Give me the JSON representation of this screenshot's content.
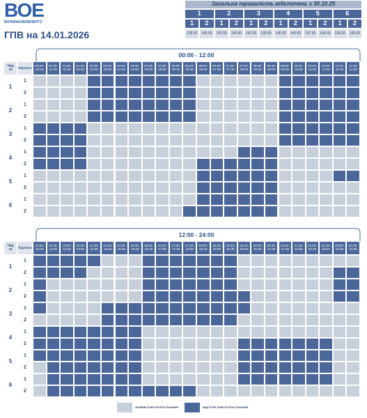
{
  "logo": {
    "mark": "ВОЕ",
    "name": "ВОЛИНЬОБЛЕНЕРГО"
  },
  "title": "ГПВ на 14.01.2026",
  "summary": {
    "title": "Загальна тривалість відключень з 30.10.25",
    "queues": [
      {
        "label": "1",
        "subqueues": [
          {
            "label": "1",
            "value": "139.50"
          },
          {
            "label": "2",
            "value": "140.00"
          }
        ]
      },
      {
        "label": "2",
        "subqueues": [
          {
            "label": "1",
            "value": "142.50"
          },
          {
            "label": "2",
            "value": "140.00"
          }
        ]
      },
      {
        "label": "3",
        "subqueues": [
          {
            "label": "1",
            "value": "142.50"
          },
          {
            "label": "2",
            "value": "139.50"
          }
        ]
      },
      {
        "label": "4",
        "subqueues": [
          {
            "label": "1",
            "value": "140.50"
          },
          {
            "label": "2",
            "value": "140.00"
          }
        ]
      },
      {
        "label": "5",
        "subqueues": [
          {
            "label": "1",
            "value": "137.50"
          },
          {
            "label": "2",
            "value": "140.00"
          }
        ]
      },
      {
        "label": "6",
        "subqueues": [
          {
            "label": "1",
            "value": "139.00"
          },
          {
            "label": "2",
            "value": "135.00"
          }
        ]
      }
    ]
  },
  "legend": [
    {
      "label": "- НАЯВНЕ ЕЛЕКТРОПОСТАЧАННЯ",
      "color": "#c7cfdb"
    },
    {
      "label": "- ВІДСУТНЄ ЕЛЕКТРОПОСТАЧАННЯ",
      "color": "#4b679a"
    }
  ],
  "periods": [
    {
      "title": "00:00 - 12:00",
      "queue_header": "Черга",
      "subqueue_header": "Підчерга",
      "slots": [
        "00:00-00:30",
        "00:30-01:00",
        "01:00-01:30",
        "01:30-02:00",
        "02:00-02:30",
        "02:30-03:00",
        "03:00-03:30",
        "03:30-04:00",
        "04:00-04:30",
        "04:30-05:00",
        "05:00-05:30",
        "05:30-06:00",
        "06:00-06:30",
        "06:30-07:00",
        "07:00-07:30",
        "07:30-08:00",
        "08:00-08:30",
        "08:30-09:00",
        "09:00-09:30",
        "09:30-10:00",
        "10:00-10:30",
        "10:30-11:00",
        "11:00-11:30",
        "11:30-12:00"
      ],
      "queues": [
        {
          "label": "1",
          "subqueues": [
            {
              "label": "1",
              "cells": [
                0,
                0,
                0,
                0,
                1,
                1,
                1,
                1,
                1,
                1,
                1,
                1,
                0,
                0,
                0,
                0,
                0,
                0,
                1,
                1,
                1,
                1,
                1,
                1
              ]
            },
            {
              "label": "2",
              "cells": [
                0,
                0,
                0,
                0,
                1,
                1,
                1,
                1,
                1,
                1,
                1,
                1,
                0,
                0,
                0,
                0,
                0,
                0,
                1,
                1,
                1,
                1,
                1,
                1
              ]
            }
          ]
        },
        {
          "label": "2",
          "subqueues": [
            {
              "label": "1",
              "cells": [
                0,
                0,
                0,
                0,
                1,
                1,
                1,
                1,
                1,
                1,
                1,
                1,
                0,
                0,
                0,
                0,
                0,
                0,
                1,
                1,
                1,
                1,
                1,
                1
              ]
            },
            {
              "label": "2",
              "cells": [
                0,
                0,
                0,
                0,
                1,
                1,
                1,
                1,
                1,
                1,
                1,
                1,
                0,
                0,
                0,
                0,
                0,
                0,
                1,
                1,
                1,
                1,
                1,
                1
              ]
            }
          ]
        },
        {
          "label": "3",
          "subqueues": [
            {
              "label": "1",
              "cells": [
                1,
                1,
                1,
                1,
                0,
                0,
                0,
                0,
                0,
                0,
                0,
                0,
                0,
                0,
                0,
                0,
                0,
                0,
                1,
                1,
                1,
                1,
                1,
                1
              ]
            },
            {
              "label": "2",
              "cells": [
                1,
                1,
                1,
                1,
                0,
                0,
                0,
                0,
                0,
                0,
                0,
                0,
                0,
                0,
                0,
                0,
                0,
                0,
                1,
                1,
                1,
                1,
                1,
                1
              ]
            }
          ]
        },
        {
          "label": "4",
          "subqueues": [
            {
              "label": "1",
              "cells": [
                1,
                1,
                1,
                1,
                0,
                0,
                0,
                0,
                0,
                0,
                0,
                0,
                0,
                0,
                0,
                1,
                1,
                1,
                0,
                0,
                0,
                0,
                0,
                0
              ]
            },
            {
              "label": "2",
              "cells": [
                1,
                1,
                1,
                1,
                0,
                0,
                0,
                0,
                0,
                0,
                0,
                0,
                1,
                1,
                1,
                1,
                1,
                1,
                0,
                0,
                0,
                0,
                0,
                0
              ]
            }
          ]
        },
        {
          "label": "5",
          "subqueues": [
            {
              "label": "1",
              "cells": [
                0,
                0,
                0,
                0,
                0,
                0,
                0,
                0,
                0,
                0,
                0,
                0,
                1,
                1,
                1,
                1,
                1,
                1,
                0,
                0,
                0,
                0,
                1,
                1
              ]
            },
            {
              "label": "2",
              "cells": [
                0,
                0,
                0,
                0,
                0,
                0,
                0,
                0,
                0,
                0,
                0,
                0,
                1,
                1,
                1,
                1,
                1,
                1,
                0,
                0,
                0,
                0,
                0,
                0
              ]
            }
          ]
        },
        {
          "label": "6",
          "subqueues": [
            {
              "label": "1",
              "cells": [
                0,
                0,
                0,
                0,
                0,
                0,
                0,
                0,
                0,
                0,
                0,
                0,
                1,
                1,
                1,
                1,
                1,
                1,
                0,
                0,
                0,
                0,
                0,
                0
              ]
            },
            {
              "label": "2",
              "cells": [
                0,
                0,
                0,
                0,
                0,
                0,
                0,
                0,
                0,
                0,
                0,
                1,
                1,
                1,
                1,
                1,
                1,
                1,
                0,
                0,
                0,
                0,
                0,
                0
              ]
            }
          ]
        }
      ]
    },
    {
      "title": "12:00 - 24:00",
      "queue_header": "Черга",
      "subqueue_header": "Підчерга",
      "slots": [
        "12:00-12:30",
        "12:30-13:00",
        "13:00-13:30",
        "13:30-14:00",
        "14:00-14:30",
        "14:30-15:00",
        "15:00-15:30",
        "15:30-16:00",
        "16:00-16:30",
        "16:30-17:00",
        "17:00-17:30",
        "17:30-18:00",
        "18:00-18:30",
        "18:30-19:00",
        "19:00-19:30",
        "19:30-20:00",
        "20:00-20:30",
        "20:30-21:00",
        "21:00-21:30",
        "21:30-22:00",
        "22:00-22:30",
        "22:30-23:00",
        "23:00-23:30",
        "23:30-24:00"
      ],
      "queues": [
        {
          "label": "1",
          "subqueues": [
            {
              "label": "1",
              "cells": [
                1,
                1,
                1,
                1,
                1,
                0,
                0,
                0,
                1,
                1,
                1,
                1,
                1,
                1,
                1,
                0,
                0,
                0,
                0,
                0,
                0,
                0,
                0,
                0
              ]
            },
            {
              "label": "2",
              "cells": [
                1,
                1,
                1,
                1,
                0,
                0,
                0,
                0,
                1,
                1,
                1,
                1,
                1,
                1,
                1,
                0,
                0,
                0,
                0,
                0,
                0,
                0,
                1,
                1
              ]
            }
          ]
        },
        {
          "label": "2",
          "subqueues": [
            {
              "label": "1",
              "cells": [
                1,
                0,
                0,
                0,
                0,
                0,
                0,
                0,
                1,
                1,
                1,
                1,
                1,
                1,
                1,
                0,
                0,
                0,
                0,
                0,
                0,
                0,
                1,
                1
              ]
            },
            {
              "label": "2",
              "cells": [
                1,
                0,
                0,
                0,
                0,
                0,
                0,
                0,
                1,
                1,
                1,
                1,
                1,
                1,
                1,
                1,
                0,
                0,
                0,
                0,
                0,
                0,
                1,
                1
              ]
            }
          ]
        },
        {
          "label": "3",
          "subqueues": [
            {
              "label": "1",
              "cells": [
                1,
                0,
                0,
                0,
                0,
                1,
                1,
                1,
                1,
                1,
                1,
                1,
                1,
                1,
                1,
                1,
                0,
                0,
                0,
                0,
                0,
                0,
                0,
                0
              ]
            },
            {
              "label": "2",
              "cells": [
                0,
                0,
                0,
                0,
                0,
                1,
                1,
                1,
                1,
                1,
                1,
                1,
                1,
                1,
                1,
                0,
                0,
                0,
                0,
                0,
                0,
                0,
                0,
                0
              ]
            }
          ]
        },
        {
          "label": "4",
          "subqueues": [
            {
              "label": "1",
              "cells": [
                1,
                1,
                1,
                1,
                1,
                1,
                1,
                1,
                0,
                0,
                0,
                0,
                0,
                0,
                0,
                0,
                0,
                0,
                0,
                0,
                0,
                0,
                0,
                0
              ]
            },
            {
              "label": "2",
              "cells": [
                1,
                1,
                1,
                1,
                1,
                1,
                1,
                1,
                0,
                0,
                0,
                0,
                0,
                0,
                0,
                1,
                1,
                1,
                1,
                1,
                1,
                1,
                0,
                0
              ]
            }
          ]
        },
        {
          "label": "5",
          "subqueues": [
            {
              "label": "1",
              "cells": [
                1,
                1,
                1,
                1,
                1,
                1,
                1,
                1,
                0,
                0,
                0,
                0,
                0,
                0,
                0,
                1,
                1,
                1,
                1,
                1,
                1,
                1,
                0,
                0
              ]
            },
            {
              "label": "2",
              "cells": [
                0,
                1,
                1,
                1,
                1,
                1,
                1,
                1,
                0,
                0,
                0,
                0,
                0,
                0,
                0,
                1,
                1,
                1,
                1,
                1,
                1,
                1,
                0,
                0
              ]
            }
          ]
        },
        {
          "label": "6",
          "subqueues": [
            {
              "label": "1",
              "cells": [
                0,
                1,
                1,
                1,
                1,
                1,
                1,
                1,
                0,
                0,
                0,
                0,
                0,
                0,
                0,
                1,
                1,
                1,
                1,
                1,
                1,
                1,
                0,
                0
              ]
            },
            {
              "label": "2",
              "cells": [
                0,
                1,
                1,
                1,
                1,
                1,
                1,
                1,
                1,
                1,
                1,
                1,
                0,
                0,
                0,
                0,
                0,
                0,
                0,
                0,
                0,
                0,
                0,
                0
              ]
            }
          ]
        }
      ]
    }
  ]
}
